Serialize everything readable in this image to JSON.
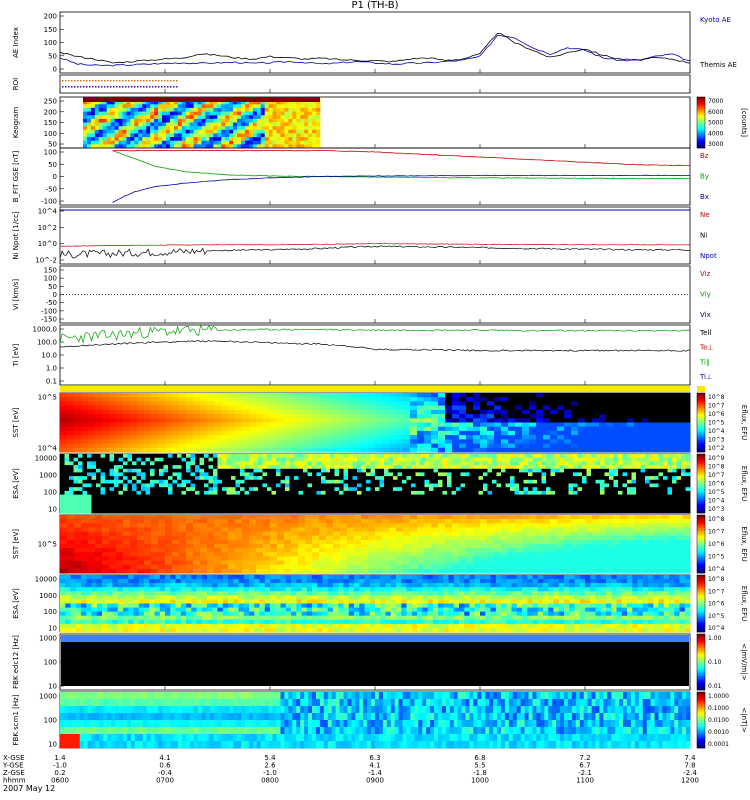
{
  "title": "P1 (TH-B)",
  "date_label": "2007 May 12",
  "colors": {
    "red": "#c80000",
    "green": "#00a000",
    "blue": "#0000b4",
    "black": "#000000",
    "roi1": "#d07000",
    "roi2": "#5000a0"
  },
  "chart_data": [
    {
      "id": "ae",
      "type": "line",
      "ylabel": "AE Index",
      "yticks": [
        "200",
        "150",
        "100",
        "50",
        "0"
      ],
      "legend": [
        "Kyoto AE",
        "Themis AE"
      ],
      "x": [
        6.0,
        6.17,
        6.33,
        6.5,
        6.67,
        6.83,
        7.0,
        7.17,
        7.33,
        7.5,
        7.67,
        7.83,
        8.0,
        8.17,
        8.33,
        8.5,
        8.67,
        8.83,
        9.0,
        9.17,
        9.33,
        9.5,
        9.67,
        9.83,
        10.0,
        10.17,
        10.33,
        10.5,
        10.67,
        10.83,
        11.0,
        11.17,
        11.33,
        11.5,
        11.67,
        11.83,
        12.0
      ],
      "series": [
        {
          "name": "Kyoto AE",
          "values": [
            40,
            15,
            10,
            10,
            12,
            15,
            18,
            20,
            18,
            20,
            22,
            18,
            20,
            25,
            22,
            15,
            20,
            25,
            20,
            15,
            18,
            20,
            25,
            30,
            45,
            130,
            120,
            80,
            55,
            80,
            70,
            40,
            30,
            30,
            45,
            55,
            25
          ]
        },
        {
          "name": "Themis AE",
          "values": [
            60,
            45,
            35,
            20,
            25,
            30,
            35,
            40,
            55,
            50,
            40,
            35,
            45,
            40,
            35,
            38,
            32,
            30,
            28,
            25,
            35,
            40,
            30,
            35,
            55,
            140,
            100,
            70,
            40,
            60,
            75,
            50,
            35,
            30,
            40,
            35,
            20
          ]
        }
      ]
    },
    {
      "id": "roi",
      "type": "line",
      "ylabel": "ROI"
    },
    {
      "id": "keogram",
      "type": "heatmap",
      "ylabel": "Keogram",
      "yticks": [
        "250",
        "200",
        "150",
        "100",
        "50"
      ],
      "colorbar_ticks": [
        "7000",
        "6000",
        "5000",
        "4000",
        "3000"
      ],
      "colorbar_label": "[counts]"
    },
    {
      "id": "bfit",
      "type": "line",
      "ylabel": "B_FIT GSE [nT]",
      "yticks": [
        "100",
        "50",
        "0",
        "-50",
        "-100"
      ],
      "legend": [
        "Bz",
        "By",
        "Bx"
      ],
      "x": [
        6.5,
        6.7,
        6.9,
        7.2,
        7.6,
        8.0,
        8.5,
        9.0,
        9.5,
        10.0,
        10.5,
        11.0,
        11.5,
        12.0
      ],
      "series": [
        {
          "name": "Bz",
          "values": [
            100,
            100,
            100,
            100,
            100,
            100,
            100,
            95,
            85,
            75,
            65,
            55,
            45,
            42
          ]
        },
        {
          "name": "By",
          "values": [
            100,
            70,
            40,
            18,
            6,
            2,
            0,
            -2,
            -4,
            -5,
            -6,
            -7,
            -8,
            -8
          ]
        },
        {
          "name": "Bx",
          "values": [
            -100,
            -60,
            -40,
            -25,
            -12,
            -5,
            0,
            2,
            3,
            4,
            4,
            4,
            4,
            4
          ]
        }
      ]
    },
    {
      "id": "density",
      "type": "line",
      "ylabel": "Ni Npot [1/cc]",
      "yticks": [
        "10^4",
        "10^2",
        "10^0",
        "10^-2"
      ],
      "legend": [
        "Ne",
        "Ni",
        "Npot"
      ],
      "x": [
        6.0,
        6.5,
        7.0,
        7.5,
        8.0,
        8.5,
        9.0,
        9.5,
        10.0,
        10.5,
        11.0,
        11.5,
        12.0
      ],
      "series": [
        {
          "name": "Ni",
          "values": [
            0.3,
            0.4,
            0.45,
            0.5,
            0.5,
            0.6,
            0.7,
            0.65,
            0.6,
            0.55,
            0.5,
            0.5,
            0.5
          ]
        },
        {
          "name": "Npot",
          "values": [
            0.02,
            0.03,
            0.05,
            0.08,
            0.1,
            0.15,
            0.3,
            0.25,
            0.2,
            0.15,
            0.12,
            0.1,
            0.1
          ]
        }
      ]
    },
    {
      "id": "vi",
      "type": "line",
      "ylabel": "Vi [km/s]",
      "yticks": [
        "150",
        "100",
        "50",
        "0",
        "-50",
        "-100",
        "-150"
      ],
      "legend": [
        "Viz",
        "Viy",
        "Vix"
      ]
    },
    {
      "id": "ti",
      "type": "line",
      "ylabel": "Ti [eV]",
      "yticks": [
        "1000.0",
        "100.0",
        "10.0",
        "1.0",
        "0.1"
      ],
      "legend": [
        "Tell",
        "Te⊥",
        "Ti∥",
        "Ti⊥"
      ],
      "x": [
        6.0,
        6.5,
        7.0,
        7.5,
        8.0,
        8.5,
        9.0,
        9.5,
        10.0,
        10.5,
        11.0,
        11.5,
        12.0
      ],
      "series": [
        {
          "name": "Ti∥",
          "values": [
            200,
            400,
            800,
            1000,
            1100,
            1100,
            1000,
            1000,
            1000,
            900,
            900,
            900,
            900
          ]
        },
        {
          "name": "Tell",
          "values": [
            50,
            80,
            120,
            140,
            100,
            80,
            30,
            30,
            25,
            25,
            25,
            25,
            25
          ]
        }
      ]
    },
    {
      "id": "sst_full",
      "type": "heatmap",
      "ylabel": "SST [eV]",
      "yticks": [
        "10^5",
        "10^4"
      ],
      "colorbar_label": "Eflux, EFU",
      "colorbar_ticks": [
        "10^8",
        "10^7",
        "10^6",
        "10^5",
        "10^4",
        "10^3",
        "10^2"
      ]
    },
    {
      "id": "esa_full",
      "type": "heatmap",
      "ylabel": "ESA [eV]",
      "yticks": [
        "10000",
        "1000",
        "100",
        "10"
      ],
      "colorbar_label": "Eflux, EFU",
      "colorbar_ticks": [
        "10^9",
        "10^8",
        "10^7",
        "10^6",
        "10^5",
        "10^4",
        "10^3"
      ]
    },
    {
      "id": "sst_reduced",
      "type": "heatmap",
      "ylabel": "SST [eV]",
      "yticks": [
        "10^5"
      ],
      "colorbar_label": "Eflux, EFU",
      "colorbar_ticks": [
        "10^8",
        "10^7",
        "10^6",
        "10^5",
        "10^4"
      ]
    },
    {
      "id": "esa_reduced",
      "type": "heatmap",
      "ylabel": "ESA [eV]",
      "yticks": [
        "10000",
        "1000",
        "100",
        "10"
      ],
      "colorbar_label": "Eflux, EFU",
      "colorbar_ticks": [
        "10^8",
        "10^7",
        "10^6",
        "10^5",
        "10^4"
      ]
    },
    {
      "id": "fbk_edc",
      "type": "heatmap",
      "ylabel": "FBK edc12 [Hz]",
      "yticks": [
        "1000",
        "100",
        "10"
      ],
      "colorbar_label": "<|mV/m|>",
      "colorbar_ticks": [
        "1.00",
        "0.10",
        "0.01"
      ]
    },
    {
      "id": "fbk_scm",
      "type": "heatmap",
      "ylabel": "FBK scm1 [Hz]",
      "yticks": [
        "1000",
        "100",
        "10"
      ],
      "colorbar_label": "<|nT|>",
      "colorbar_ticks": [
        "1.0000",
        "0.1000",
        "0.0100",
        "0.0010",
        "0.0001"
      ]
    }
  ],
  "xaxis": {
    "row_labels": [
      "X-GSE",
      "Y-GSE",
      "Z-GSE",
      "hhmm"
    ],
    "columns": [
      {
        "X-GSE": "1.4",
        "Y-GSE": "-1.0",
        "Z-GSE": "0.2",
        "hhmm": "0600"
      },
      {
        "X-GSE": "4.1",
        "Y-GSE": "0.6",
        "Z-GSE": "-0.4",
        "hhmm": "0700"
      },
      {
        "X-GSE": "5.4",
        "Y-GSE": "2.6",
        "Z-GSE": "-1.0",
        "hhmm": "0800"
      },
      {
        "X-GSE": "6.3",
        "Y-GSE": "4.1",
        "Z-GSE": "-1.4",
        "hhmm": "0900"
      },
      {
        "X-GSE": "6.8",
        "Y-GSE": "5.5",
        "Z-GSE": "-1.8",
        "hhmm": "1000"
      },
      {
        "X-GSE": "7.2",
        "Y-GSE": "6.7",
        "Z-GSE": "-2.1",
        "hhmm": "1100"
      },
      {
        "X-GSE": "7.4",
        "Y-GSE": "7.8",
        "Z-GSE": "-2.4",
        "hhmm": "1200"
      }
    ]
  }
}
